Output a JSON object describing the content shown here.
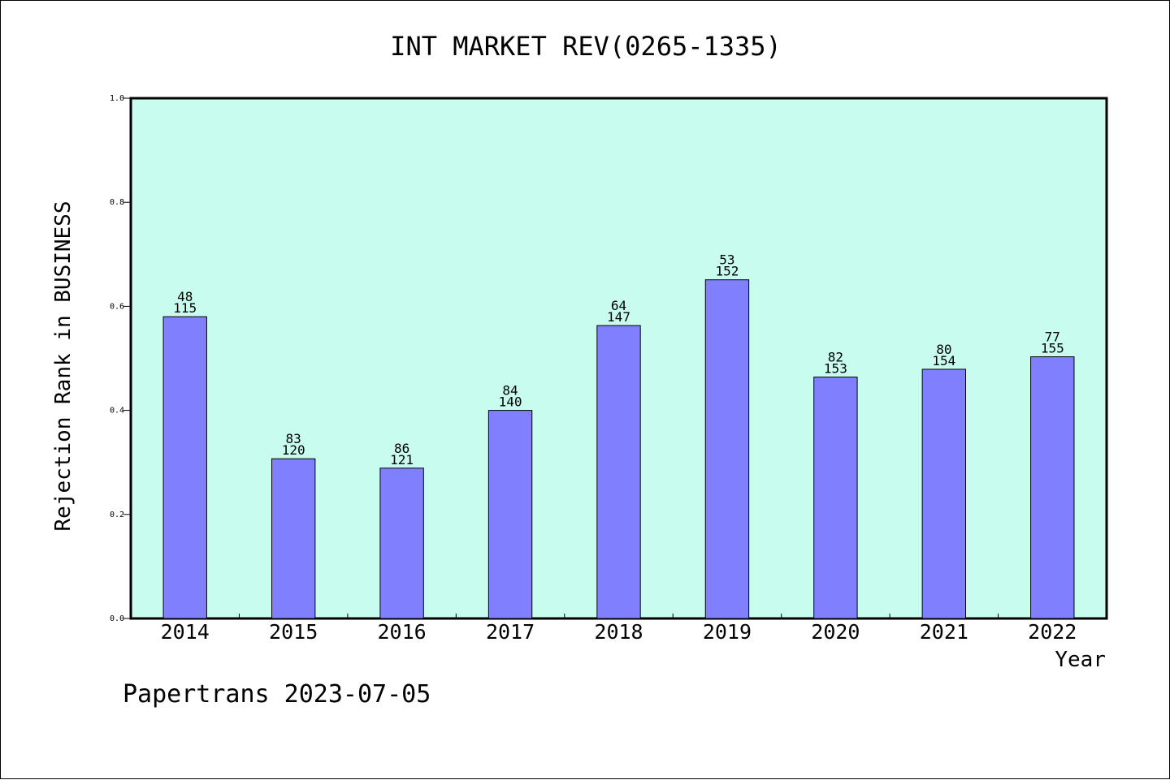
{
  "chart_data": {
    "type": "bar",
    "title": "INT MARKET REV(0265-1335)",
    "xlabel": "Year",
    "ylabel": "Rejection Rank in BUSINESS",
    "categories": [
      "2014",
      "2015",
      "2016",
      "2017",
      "2018",
      "2019",
      "2020",
      "2021",
      "2022"
    ],
    "values": [
      0.58,
      0.307,
      0.289,
      0.4,
      0.563,
      0.651,
      0.464,
      0.479,
      0.503
    ],
    "bar_labels_top": [
      "48",
      "83",
      "86",
      "84",
      "64",
      "53",
      "82",
      "80",
      "77"
    ],
    "bar_labels_bottom": [
      "115",
      "120",
      "121",
      "140",
      "147",
      "152",
      "153",
      "154",
      "155"
    ],
    "ylim": [
      0,
      1.0
    ],
    "yticks": [
      "0.0",
      "0.2",
      "0.4",
      "0.6",
      "0.8",
      "1.0"
    ],
    "grid": false,
    "legend": "none",
    "colors": {
      "plot_background": "#c8fcee",
      "bar_fill": "#8080ff",
      "bar_stroke": "#000000"
    }
  },
  "footer": "Papertrans 2023-07-05"
}
